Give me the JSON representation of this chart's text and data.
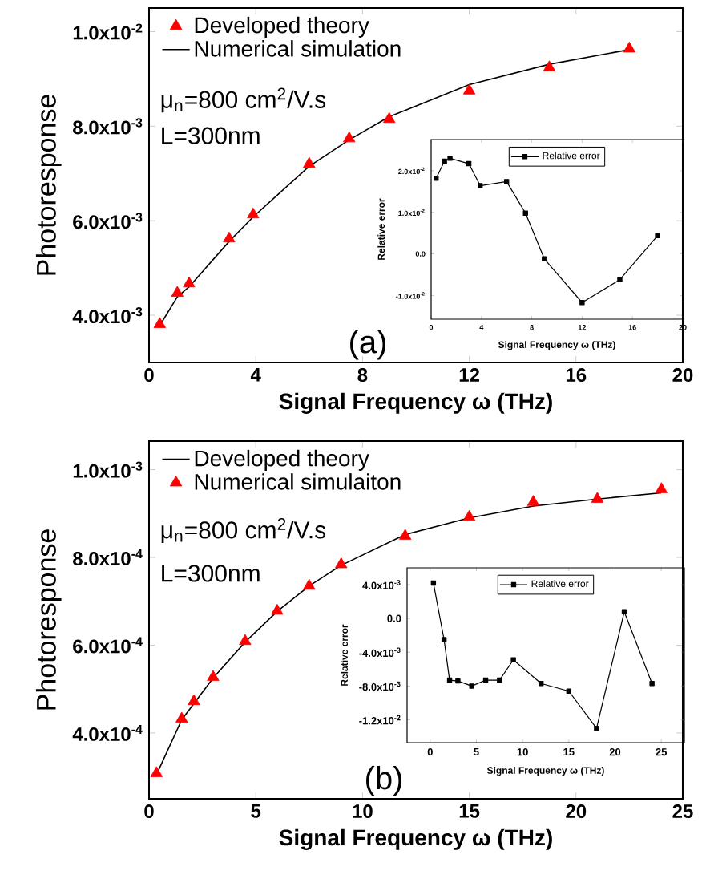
{
  "chart_data": [
    {
      "type": "scatter",
      "xlabel": "Signal Frequency ω (THz)",
      "ylabel": "Photoresponse",
      "annotations": [
        "μ$_{n}$=800 cm$^{2}$/V.s",
        "L=300nm",
        "(a)"
      ],
      "xlim": [
        0,
        20
      ],
      "ylim": [
        0.003,
        0.0105
      ],
      "xticks": [
        0,
        4,
        8,
        12,
        16,
        20
      ],
      "yticks": [
        {
          "value": 0.004,
          "label": "4.0x10$^{-3}$"
        },
        {
          "value": 0.006,
          "label": "6.0x10$^{-3}$"
        },
        {
          "value": 0.008,
          "label": "8.0x10$^{-3}$"
        },
        {
          "value": 0.01,
          "label": "1.0x10$^{-2}$"
        }
      ],
      "legend": "top left",
      "series": [
        {
          "name": "Developed theory",
          "marker": "triangle",
          "color": "#ff0000",
          "x": [
            0.4,
            1.06,
            1.5,
            3,
            3.9,
            6,
            7.5,
            9,
            12,
            15,
            18
          ],
          "values": [
            0.00381,
            0.00447,
            0.00467,
            0.00562,
            0.00613,
            0.0072,
            0.00774,
            0.00815,
            0.00875,
            0.00924,
            0.00964
          ]
        },
        {
          "name": "Numerical simulation",
          "type": "line",
          "marker": "none",
          "color": "#000000",
          "x": [
            0.4,
            1.06,
            1.5,
            3,
            3.9,
            6,
            7.5,
            9,
            12,
            15,
            18
          ],
          "values": [
            0.00378,
            0.00439,
            0.0046,
            0.00556,
            0.00608,
            0.00715,
            0.00771,
            0.0082,
            0.00888,
            0.00931,
            0.00962
          ]
        }
      ]
    },
    {
      "type": "line",
      "xlabel": "Signal Frequency ω (THz)",
      "ylabel": "Relative error",
      "xlim": [
        0,
        20
      ],
      "ylim": [
        -0.0157,
        0.0275
      ],
      "xticks": [
        0,
        4,
        8,
        12,
        16,
        20
      ],
      "yticks": [
        {
          "value": -0.01,
          "label": "-1.0x10$^{-2}$"
        },
        {
          "value": 0,
          "label": "0.0"
        },
        {
          "value": 0.01,
          "label": "1.0x10$^{-2}$"
        },
        {
          "value": 0.02,
          "label": "2.0x10$^{-2}$"
        }
      ],
      "legend": "top",
      "series": [
        {
          "name": "Relative error",
          "marker": "square",
          "color": "#000000",
          "x": [
            0.4,
            1.06,
            1.5,
            3,
            3.9,
            6,
            7.5,
            9,
            12,
            15,
            18
          ],
          "values": [
            0.0182,
            0.0223,
            0.023,
            0.0217,
            0.0164,
            0.0174,
            0.0098,
            -0.0012,
            -0.0117,
            -0.0062,
            0.0044
          ]
        }
      ]
    },
    {
      "type": "scatter",
      "xlabel": "Signal Frequency ω (THz)",
      "ylabel": "Photoresponse",
      "annotations": [
        "μ$_{n}$=800 cm$^{2}$/V.s",
        "L=300nm",
        "(b)"
      ],
      "xlim": [
        0,
        25
      ],
      "ylim": [
        0.00025,
        0.001065
      ],
      "xticks": [
        0,
        5,
        10,
        15,
        20,
        25
      ],
      "yticks": [
        {
          "value": 0.0004,
          "label": "4.0x10$^{-4}$"
        },
        {
          "value": 0.0006,
          "label": "6.0x10$^{-4}$"
        },
        {
          "value": 0.0008,
          "label": "8.0x10$^{-4}$"
        },
        {
          "value": 0.001,
          "label": "1.0x10$^{-3}$"
        }
      ],
      "legend": "top left",
      "series": [
        {
          "name": "Developed theory",
          "type": "line",
          "marker": "none",
          "color": "#000000",
          "x": [
            0.35,
            1.53,
            3,
            4.5,
            6,
            7.5,
            9,
            12,
            15,
            18,
            21,
            24
          ],
          "values": [
            0.000305,
            0.00043,
            0.000525,
            0.000607,
            0.000677,
            0.000735,
            0.000782,
            0.000852,
            0.00089,
            0.000917,
            0.000933,
            0.000947
          ]
        },
        {
          "name": "Numerical simulaiton",
          "marker": "triangle",
          "color": "#ff0000",
          "x": [
            0.35,
            1.53,
            2.1,
            3,
            4.5,
            6,
            7.5,
            9,
            12,
            15,
            18,
            21,
            24
          ],
          "values": [
            0.000308,
            0.000432,
            0.000472,
            0.000527,
            0.000609,
            0.000678,
            0.000735,
            0.000784,
            0.000849,
            0.000892,
            0.000926,
            0.000933,
            0.000955
          ]
        }
      ]
    },
    {
      "type": "line",
      "xlabel": "Signal Frequency ω (THz)",
      "ylabel": "Relative error",
      "xlim": [
        -2.5,
        27.5
      ],
      "ylim": [
        -0.0147,
        0.006
      ],
      "xticks": [
        0,
        5,
        10,
        15,
        20,
        25
      ],
      "yticks": [
        {
          "value": -0.012,
          "label": "-1.2x10$^{-2}$"
        },
        {
          "value": -0.008,
          "label": "-8.0x10$^{-3}$"
        },
        {
          "value": -0.004,
          "label": "-4.0x10$^{-3}$"
        },
        {
          "value": 0,
          "label": "0.0"
        },
        {
          "value": 0.004,
          "label": "4.0x10$^{-3}$"
        }
      ],
      "legend": "top",
      "series": [
        {
          "name": "Relative error",
          "marker": "square",
          "color": "#000000",
          "x": [
            0.35,
            1.5,
            2.1,
            3,
            4.5,
            6,
            7.5,
            9,
            12,
            15,
            18,
            21,
            24
          ],
          "values": [
            0.0042,
            -0.0025,
            -0.0073,
            -0.0074,
            -0.008,
            -0.0073,
            -0.0073,
            -0.0049,
            -0.0077,
            -0.0086,
            -0.013,
            0.0008,
            -0.0077
          ]
        }
      ]
    }
  ]
}
